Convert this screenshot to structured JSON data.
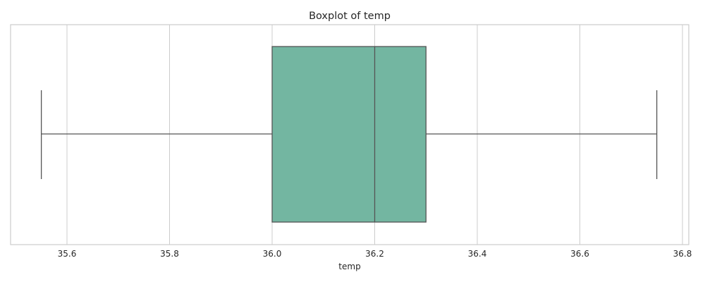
{
  "chart_data": {
    "type": "boxplot",
    "title": "Boxplot of temp",
    "xlabel": "temp",
    "ylabel": "",
    "xlim": [
      35.5,
      36.8
    ],
    "xticks": [
      "35.6",
      "35.8",
      "36.0",
      "36.2",
      "36.4",
      "36.6",
      "36.8"
    ],
    "grid": true,
    "orientation": "horizontal",
    "box": {
      "whisker_low": 35.55,
      "q1": 36.0,
      "median": 36.2,
      "q3": 36.3,
      "whisker_high": 36.75
    },
    "colors": {
      "box_fill": "#73b6a1",
      "line": "#555555",
      "grid": "#cccccc",
      "frame": "#cccccc"
    }
  }
}
